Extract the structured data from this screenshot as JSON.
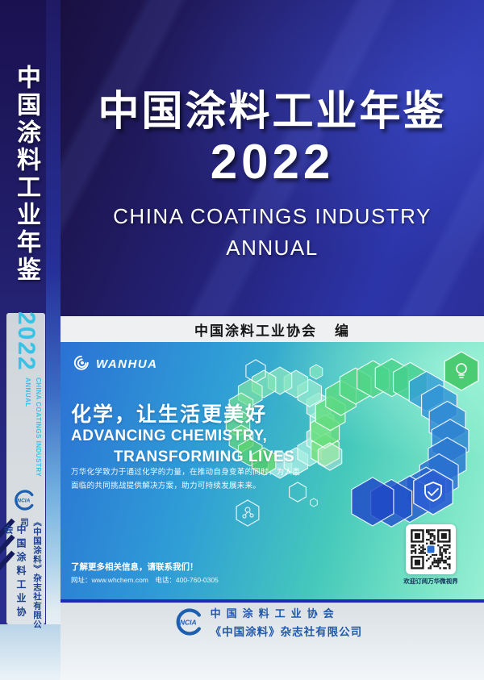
{
  "spine": {
    "title": "中国涂料工业年鉴",
    "year": "2022",
    "subtitle_en_line1": "CHINA COATINGS INDUSTRY",
    "subtitle_en_line2": "ANNUAL",
    "logo_text": "NCIA",
    "org": "中国涂料工业协会",
    "publisher": "《中国涂料》杂志社有限公司"
  },
  "cover": {
    "title": "中国涂料工业年鉴",
    "year": "2022",
    "subtitle_line1": "CHINA COATINGS INDUSTRY",
    "subtitle_line2": "ANNUAL",
    "editor_org": "中国涂料工业协会",
    "editor_suffix": "编"
  },
  "ad_banner": {
    "brand": "WANHUA",
    "slogan_cn": "化学，让生活更美好",
    "slogan_en_line1": "ADVANCING CHEMISTRY,",
    "slogan_en_line2": "TRANSFORMING LIVES",
    "body_line1": "万华化学致力于通过化学的力量，在推动自身变革的同时，为人类",
    "body_line2": "面临的共同挑战提供解决方案，助力可持续发展未来。",
    "contact_heading": "了解更多相关信息，请联系我们！",
    "contact_info": "网址：www.whchem.com　电话：400-760-0305",
    "qr_caption": "欢迎订阅万华微视界"
  },
  "footer": {
    "logo_text": "NCIA",
    "org": "中国涂料工业协会",
    "publisher": "《中国涂料》杂志社有限公司"
  },
  "icons": {
    "brand_logo": "wanhua-swirl-icon",
    "association_logo": "ncia-ring-logo",
    "qr": "qr-code",
    "hex_accents": [
      "lightbulb-icon",
      "shield-check-icon",
      "molecule-icon"
    ]
  },
  "colors": {
    "spine_year_accent": "#38c2e6",
    "ncia_blue": "#1d5fb0",
    "banner_border": "#1d2ab5",
    "cover_bg_dark": "#1c1254",
    "cover_bg_bright": "#2c35a8",
    "banner_left": "#2b72d4",
    "banner_right": "#98efd4"
  }
}
